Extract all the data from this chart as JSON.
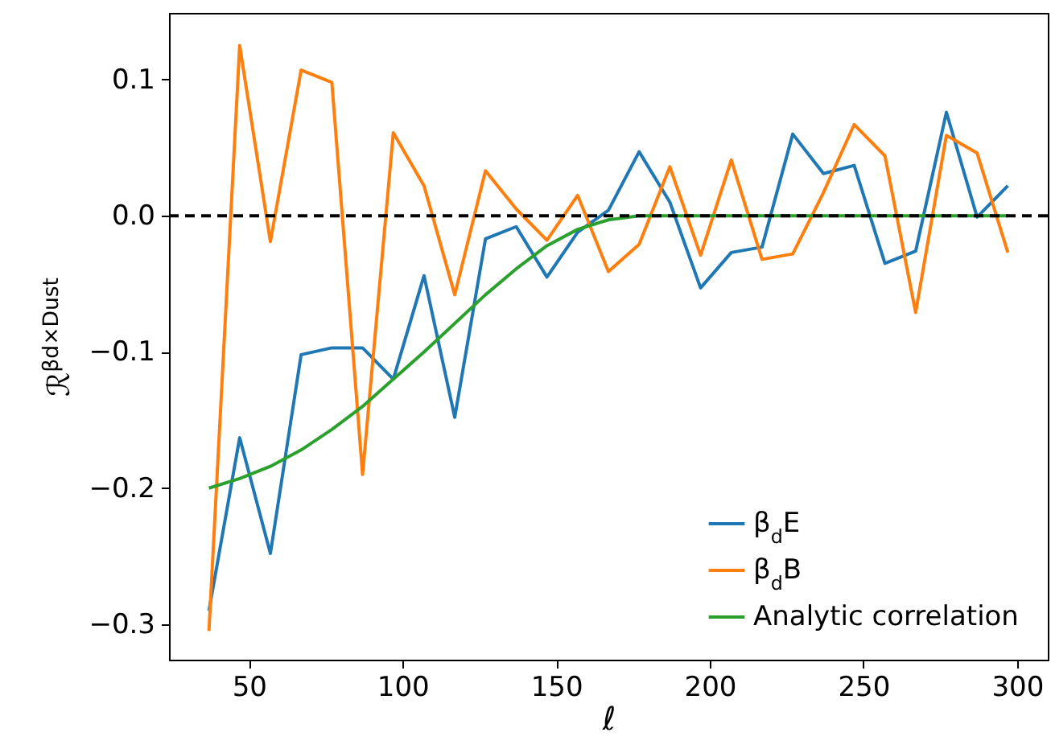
{
  "chart_data": {
    "type": "line",
    "xlabel": "ℓ",
    "ylabel": "ℛ$^{βd×Dust}$",
    "x": [
      37,
      47,
      57,
      67,
      77,
      87,
      97,
      107,
      117,
      127,
      137,
      147,
      157,
      167,
      177,
      187,
      197,
      207,
      217,
      227,
      237,
      247,
      257,
      267,
      277,
      287,
      297
    ],
    "series": [
      {
        "name": "β$_{d}$E",
        "color": "#1f77b4",
        "values": [
          -0.29,
          -0.163,
          -0.248,
          -0.102,
          -0.097,
          -0.097,
          -0.12,
          -0.044,
          -0.148,
          -0.017,
          -0.008,
          -0.045,
          -0.012,
          0.004,
          0.047,
          0.01,
          -0.053,
          -0.027,
          -0.023,
          0.06,
          0.031,
          0.037,
          -0.035,
          -0.026,
          0.076,
          -0.001,
          0.022
        ]
      },
      {
        "name": "β$_{d}$B",
        "color": "#ff7f0e",
        "values": [
          -0.305,
          0.125,
          -0.019,
          0.107,
          0.098,
          -0.19,
          0.061,
          0.022,
          -0.058,
          0.033,
          0.005,
          -0.018,
          0.015,
          -0.041,
          -0.021,
          0.036,
          -0.029,
          0.041,
          -0.032,
          -0.028,
          0.017,
          0.067,
          0.044,
          -0.071,
          0.059,
          0.046,
          -0.027
        ]
      },
      {
        "name": "Analytic correlation",
        "color": "#2ca02c",
        "values": [
          -0.2,
          -0.193,
          -0.184,
          -0.172,
          -0.157,
          -0.14,
          -0.12,
          -0.1,
          -0.079,
          -0.058,
          -0.039,
          -0.022,
          -0.01,
          -0.003,
          0,
          0,
          0,
          0,
          0,
          0,
          0,
          0,
          0,
          0,
          0,
          0,
          0
        ]
      }
    ],
    "xlim": [
      24,
      310
    ],
    "ylim": [
      -0.326,
      0.149
    ],
    "xticks": [
      50,
      100,
      150,
      200,
      250,
      300
    ],
    "yticks": [
      {
        "value": -0.3,
        "label": "−0.3"
      },
      {
        "value": -0.2,
        "label": "−0.2"
      },
      {
        "value": -0.1,
        "label": "−0.1"
      },
      {
        "value": 0,
        "label": "0.0"
      },
      {
        "value": 0.1,
        "label": "0.1"
      }
    ],
    "ref_lines": [
      {
        "axis": "y",
        "value": 0,
        "color": "#000000",
        "line_style": "dashed"
      }
    ],
    "grid": false,
    "legend": "bottom right"
  }
}
